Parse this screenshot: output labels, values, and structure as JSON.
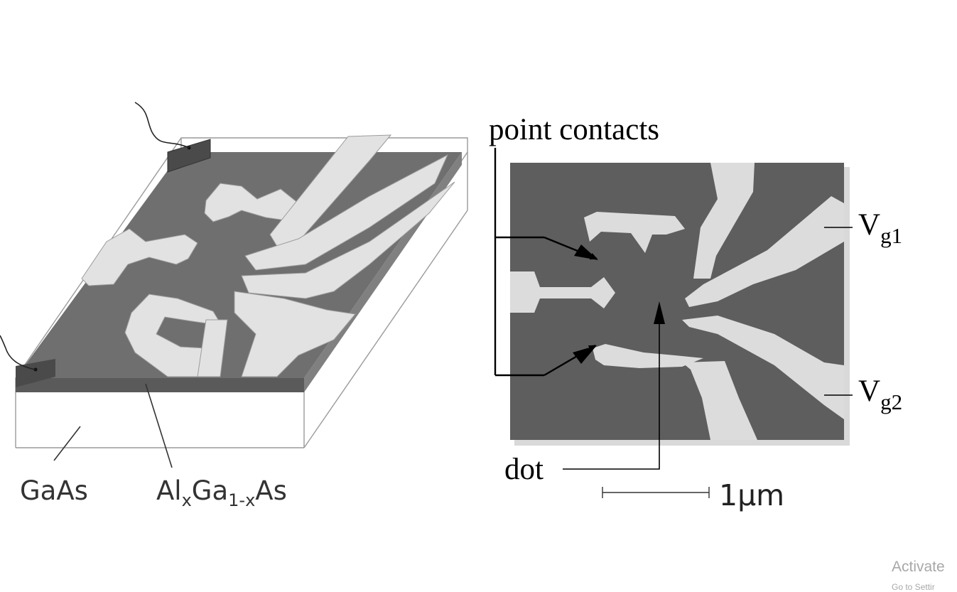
{
  "device_diagram": {
    "label_gaas": "GaAs",
    "label_algaas": {
      "al": "Al",
      "x_sub": "x",
      "ga": "Ga",
      "sub": "1-x",
      "as": "As"
    }
  },
  "sem_image": {
    "label_point_contacts": "point contacts",
    "label_dot": "dot",
    "label_vg1": {
      "v": "V",
      "sub": "g1"
    },
    "label_vg2": {
      "v": "V",
      "sub": "g2"
    },
    "scale_bar": "1μm"
  },
  "watermark": {
    "line1": "Activate",
    "line2": "Go to Settir"
  },
  "colors": {
    "gate_metal": "#e2e2e2",
    "gas_dark": "#6f6f6f",
    "sem_background": "#5e5e5e",
    "sem_gate": "#dcdcdc"
  }
}
